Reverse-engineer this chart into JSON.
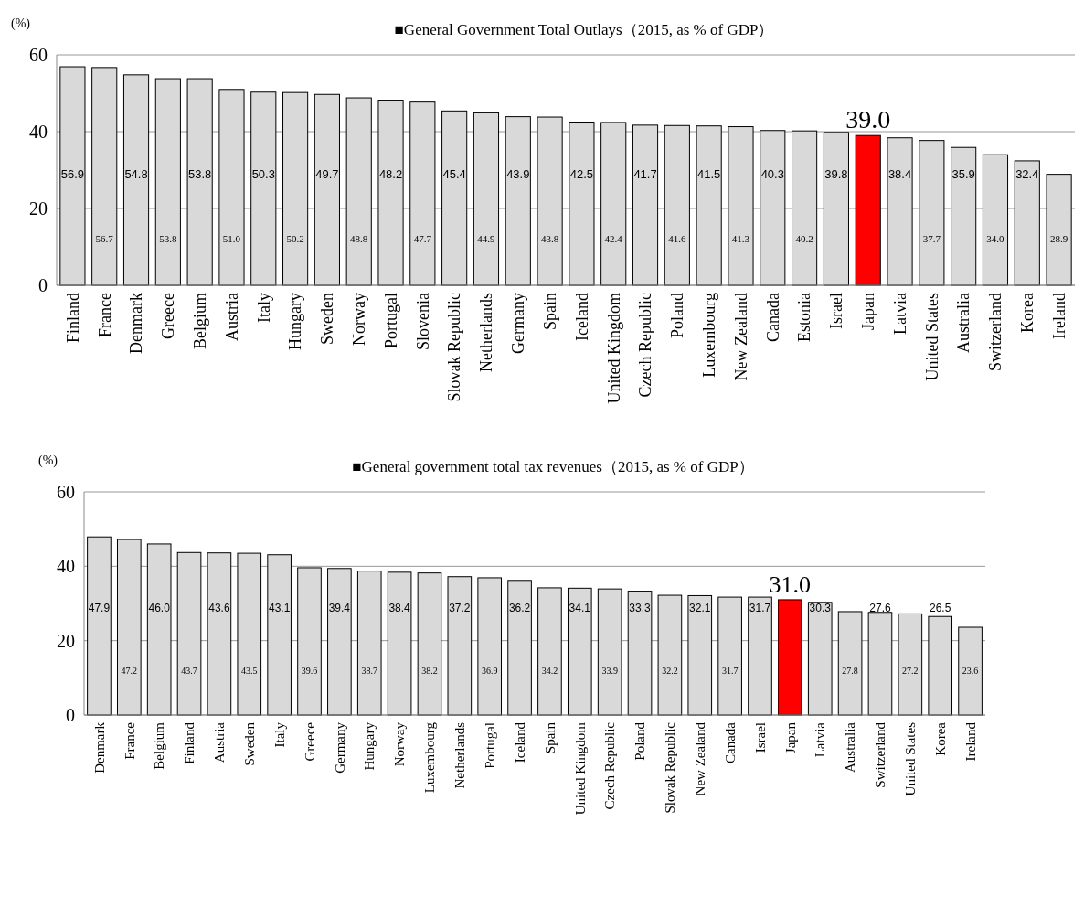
{
  "chart_data": [
    {
      "type": "bar",
      "title": "■General Government Total Outlays（2015, as % of GDP）",
      "ylabel": "(%)",
      "categories": [
        "Finland",
        "France",
        "Denmark",
        "Greece",
        "Belgium",
        "Austria",
        "Italy",
        "Hungary",
        "Sweden",
        "Norway",
        "Portugal",
        "Slovenia",
        "Slovak Republic",
        "Netherlands",
        "Germany",
        "Spain",
        "Iceland",
        "United Kingdom",
        "Czech Republic",
        "Poland",
        "Luxembourg",
        "New Zealand",
        "Canada",
        "Estonia",
        "Israel",
        "Japan",
        "Latvia",
        "United States",
        "Australia",
        "Switzerland",
        "Korea",
        "Ireland"
      ],
      "values": [
        56.9,
        56.7,
        54.8,
        53.8,
        53.8,
        51.0,
        50.3,
        50.2,
        49.7,
        48.8,
        48.2,
        47.7,
        45.4,
        44.9,
        43.9,
        43.8,
        42.5,
        42.4,
        41.7,
        41.6,
        41.5,
        41.3,
        40.3,
        40.2,
        39.8,
        39.0,
        38.4,
        37.7,
        35.9,
        34.0,
        32.4,
        28.9
      ],
      "value_labels": [
        "56.9",
        "56.7",
        "54.8",
        "53.8",
        "53.8",
        "51.0",
        "50.3",
        "50.2",
        "49.7",
        "48.8",
        "48.2",
        "47.7",
        "45.4",
        "44.9",
        "43.9",
        "43.8",
        "42.5",
        "42.4",
        "41.7",
        "41.6",
        "41.5",
        "41.3",
        "40.3",
        "40.2",
        "39.8",
        "39.0",
        "38.4",
        "37.7",
        "35.9",
        "34.0",
        "32.4",
        "28.9"
      ],
      "colors": [
        "#d9d9d9",
        "#d9d9d9",
        "#d9d9d9",
        "#d9d9d9",
        "#d9d9d9",
        "#d9d9d9",
        "#d9d9d9",
        "#d9d9d9",
        "#d9d9d9",
        "#d9d9d9",
        "#d9d9d9",
        "#d9d9d9",
        "#d9d9d9",
        "#d9d9d9",
        "#d9d9d9",
        "#d9d9d9",
        "#d9d9d9",
        "#d9d9d9",
        "#d9d9d9",
        "#d9d9d9",
        "#d9d9d9",
        "#d9d9d9",
        "#d9d9d9",
        "#d9d9d9",
        "#d9d9d9",
        "#ff0000",
        "#d9d9d9",
        "#d9d9d9",
        "#d9d9d9",
        "#d9d9d9",
        "#d9d9d9",
        "#d9d9d9"
      ],
      "ylim": [
        0,
        60
      ],
      "yticks": [
        0,
        20,
        40,
        60
      ],
      "grid": "y"
    },
    {
      "type": "bar",
      "title": "■General government total tax revenues（2015, as % of GDP）",
      "ylabel": "(%)",
      "categories": [
        "Denmark",
        "France",
        "Belgium",
        "Finland",
        "Austria",
        "Sweden",
        "Italy",
        "Greece",
        "Germany",
        "Hungary",
        "Norway",
        "Luxembourg",
        "Netherlands",
        "Portugal",
        "Iceland",
        "Spain",
        "United Kingdom",
        "Czech Republic",
        "Poland",
        "Slovak Republic",
        "New Zealand",
        "Canada",
        "Israel",
        "Japan",
        "Latvia",
        "Australia",
        "Switzerland",
        "United States",
        "Korea",
        "Ireland"
      ],
      "values": [
        47.9,
        47.2,
        46.0,
        43.7,
        43.6,
        43.5,
        43.1,
        39.6,
        39.4,
        38.7,
        38.4,
        38.2,
        37.2,
        36.9,
        36.2,
        34.2,
        34.1,
        33.9,
        33.3,
        32.2,
        32.1,
        31.7,
        31.7,
        31.0,
        30.3,
        27.8,
        27.6,
        27.2,
        26.5,
        23.6
      ],
      "value_labels": [
        "47.9",
        "47.2",
        "46.0",
        "43.7",
        "43.6",
        "43.5",
        "43.1",
        "39.6",
        "39.4",
        "38.7",
        "38.4",
        "38.2",
        "37.2",
        "36.9",
        "36.2",
        "34.2",
        "34.1",
        "33.9",
        "33.3",
        "32.2",
        "32.1",
        "31.7",
        "31.7",
        "31.0",
        "30.3",
        "27.8",
        "27.6",
        "27.2",
        "26.5",
        "23.6"
      ],
      "colors": [
        "#d9d9d9",
        "#d9d9d9",
        "#d9d9d9",
        "#d9d9d9",
        "#d9d9d9",
        "#d9d9d9",
        "#d9d9d9",
        "#d9d9d9",
        "#d9d9d9",
        "#d9d9d9",
        "#d9d9d9",
        "#d9d9d9",
        "#d9d9d9",
        "#d9d9d9",
        "#d9d9d9",
        "#d9d9d9",
        "#d9d9d9",
        "#d9d9d9",
        "#d9d9d9",
        "#d9d9d9",
        "#d9d9d9",
        "#d9d9d9",
        "#d9d9d9",
        "#ff0000",
        "#d9d9d9",
        "#d9d9d9",
        "#d9d9d9",
        "#d9d9d9",
        "#d9d9d9",
        "#d9d9d9"
      ],
      "ylim": [
        0,
        60
      ],
      "yticks": [
        0,
        20,
        40,
        60
      ],
      "grid": "y"
    }
  ]
}
